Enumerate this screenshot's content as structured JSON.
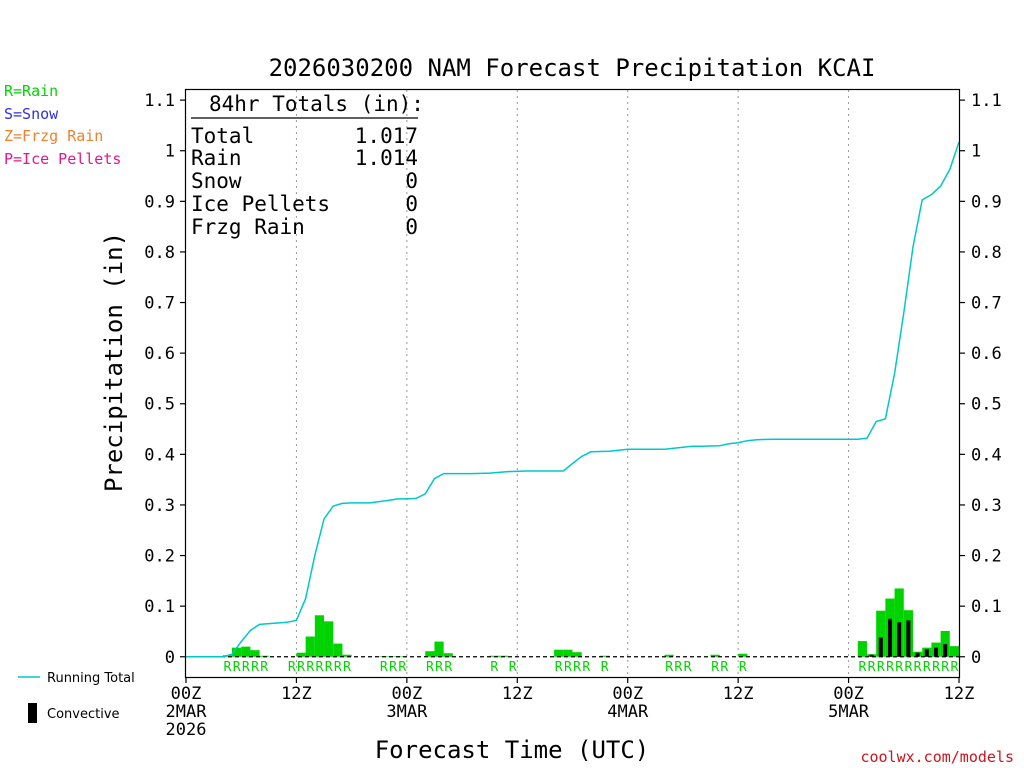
{
  "chart_data": {
    "type": "bar",
    "title": "2026030200 NAM Forecast Precipitation KCAI",
    "xlabel": "Forecast Time (UTC)",
    "ylabel": "Precipitation (in)",
    "ylim": [
      -0.04,
      1.12
    ],
    "y_ticks": [
      0,
      0.1,
      0.2,
      0.3,
      0.4,
      0.5,
      0.6,
      0.7,
      0.8,
      0.9,
      1,
      1.1
    ],
    "y_tick_labels": [
      "0",
      "0.1",
      "0.2",
      "0.3",
      "0.4",
      "0.5",
      "0.6",
      "0.7",
      "0.8",
      "0.9",
      "1",
      "1.1"
    ],
    "x_range_hours": [
      0,
      84
    ],
    "x_ticks": [
      {
        "hour": 0,
        "lines": [
          "00Z",
          "2MAR",
          "2026"
        ]
      },
      {
        "hour": 12,
        "lines": [
          "12Z"
        ]
      },
      {
        "hour": 24,
        "lines": [
          "00Z",
          "3MAR"
        ]
      },
      {
        "hour": 36,
        "lines": [
          "12Z"
        ]
      },
      {
        "hour": 48,
        "lines": [
          "00Z",
          "4MAR"
        ]
      },
      {
        "hour": 60,
        "lines": [
          "12Z"
        ]
      },
      {
        "hour": 72,
        "lines": [
          "00Z",
          "5MAR"
        ]
      },
      {
        "hour": 84,
        "lines": [
          "12Z"
        ]
      }
    ],
    "grid_hours": [
      12,
      24,
      36,
      48,
      60,
      72
    ],
    "legend": {
      "placement": "left",
      "ptype_entries": [
        {
          "label": "R=Rain",
          "color": "#00d400"
        },
        {
          "label": "S=Snow",
          "color": "#3030e0"
        },
        {
          "label": "Z=Frzg Rain",
          "color": "#f08030"
        },
        {
          "label": "P=Ice Pellets",
          "color": "#e01890"
        }
      ],
      "running_total_label": "Running Total",
      "convective_label": "Convective"
    },
    "totals_box": {
      "header": "84hr Totals (in):",
      "rows": [
        {
          "label": "Total",
          "value": "1.017"
        },
        {
          "label": "Rain",
          "value": "1.014"
        },
        {
          "label": "Snow",
          "value": "0"
        },
        {
          "label": "Ice Pellets",
          "value": "0"
        },
        {
          "label": "Frzg Rain",
          "value": "0"
        }
      ]
    },
    "series": [
      {
        "name": "Hourly Precipitation (Rain)",
        "type": "bar",
        "color": "#00d400",
        "hours": [
          5,
          6,
          7,
          8,
          9,
          13,
          14,
          15,
          16,
          17,
          18,
          22,
          23,
          24,
          27,
          28,
          29,
          34,
          35,
          41,
          42,
          43,
          46,
          53,
          58,
          61,
          74,
          75,
          76,
          77,
          78,
          79,
          80,
          81,
          82,
          83,
          84
        ],
        "values": [
          0.003,
          0.018,
          0.02,
          0.013,
          0.002,
          0.008,
          0.04,
          0.082,
          0.07,
          0.026,
          0.004,
          0.001,
          0.001,
          0.001,
          0.011,
          0.03,
          0.007,
          0.002,
          0.002,
          0.014,
          0.014,
          0.009,
          0.002,
          0.004,
          0.004,
          0.006,
          0.031,
          0.005,
          0.091,
          0.115,
          0.135,
          0.092,
          0.01,
          0.018,
          0.028,
          0.051,
          0.021
        ]
      },
      {
        "name": "Convective",
        "type": "bar",
        "color": "#000000",
        "hours": [
          75,
          76,
          77,
          78,
          79,
          80,
          81,
          82,
          83
        ],
        "values": [
          0.004,
          0.038,
          0.075,
          0.068,
          0.072,
          0.008,
          0.015,
          0.018,
          0.025
        ]
      },
      {
        "name": "Running Total",
        "type": "line",
        "color": "#00c8c8",
        "x": [
          0,
          4,
          5,
          6,
          7,
          8,
          11,
          12,
          13,
          14,
          15,
          16,
          17,
          18,
          20,
          22,
          23,
          24,
          25,
          26,
          27,
          28,
          29,
          31,
          33,
          35,
          37,
          41,
          42,
          43,
          44,
          46,
          48,
          50,
          52,
          53,
          55,
          56,
          58,
          59,
          60,
          61,
          62,
          64,
          71,
          72,
          73,
          74,
          75,
          76,
          77,
          78,
          79,
          80,
          81,
          82,
          83,
          84
        ],
        "y": [
          0,
          0,
          0.005,
          0.03,
          0.052,
          0.064,
          0.068,
          0.072,
          0.115,
          0.2,
          0.272,
          0.298,
          0.303,
          0.304,
          0.304,
          0.309,
          0.312,
          0.312,
          0.313,
          0.322,
          0.352,
          0.362,
          0.362,
          0.362,
          0.363,
          0.366,
          0.367,
          0.367,
          0.382,
          0.396,
          0.405,
          0.406,
          0.41,
          0.41,
          0.41,
          0.412,
          0.416,
          0.416,
          0.417,
          0.421,
          0.423,
          0.427,
          0.429,
          0.43,
          0.43,
          0.43,
          0.43,
          0.432,
          0.465,
          0.47,
          0.56,
          0.68,
          0.81,
          0.903,
          0.913,
          0.93,
          0.963,
          1.017
        ]
      }
    ],
    "ptype_labels": [
      {
        "hours": [
          5,
          6,
          7,
          8,
          9
        ],
        "text": "R"
      },
      {
        "hours": [
          12,
          13,
          14,
          15,
          16,
          17,
          18
        ],
        "text": "R"
      },
      {
        "hours": [
          22,
          23,
          24
        ],
        "text": "R"
      },
      {
        "hours": [
          27,
          28,
          29
        ],
        "text": "R"
      },
      {
        "hours": [
          34,
          36
        ],
        "text": "R"
      },
      {
        "hours": [
          41,
          42,
          43,
          44,
          46
        ],
        "text": "R"
      },
      {
        "hours": [
          53,
          54,
          55,
          58,
          59,
          61
        ],
        "text": "R"
      },
      {
        "hours": [
          74,
          75,
          76,
          77,
          78,
          79,
          80,
          81,
          82,
          83,
          84
        ],
        "text": "R"
      }
    ],
    "watermark": "coolwx.com/models"
  }
}
